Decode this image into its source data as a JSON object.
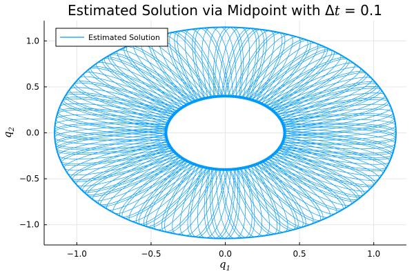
{
  "chart_data": {
    "type": "line",
    "title": {
      "prefix": "Estimated Solution via Midpoint with ",
      "symbol": "Δ",
      "var": "t",
      "suffix": " = 0.1"
    },
    "xlabel": {
      "base": "q",
      "sub": "1"
    },
    "ylabel": {
      "base": "q",
      "sub": "2"
    },
    "xlim": [
      -1.22,
      1.22
    ],
    "ylim": [
      -1.22,
      1.22
    ],
    "xticks": [
      -1.0,
      -0.5,
      0.0,
      0.5,
      1.0
    ],
    "xtick_labels": [
      "−1.0",
      "−0.5",
      "0.0",
      "0.5",
      "1.0"
    ],
    "yticks": [
      -1.0,
      -0.5,
      0.0,
      0.5,
      1.0
    ],
    "ytick_labels": [
      "−1.0",
      "−0.5",
      "0.0",
      "0.5",
      "1.0"
    ],
    "grid": true,
    "legend_position": "top-left",
    "series": [
      {
        "name": "Estimated Solution",
        "color": "#009AFA",
        "shape": "annulus",
        "outer_radius_x": 1.15,
        "outer_radius_y": 1.15,
        "inner_radius_x": 0.4,
        "inner_radius_y": 0.4
      }
    ]
  }
}
